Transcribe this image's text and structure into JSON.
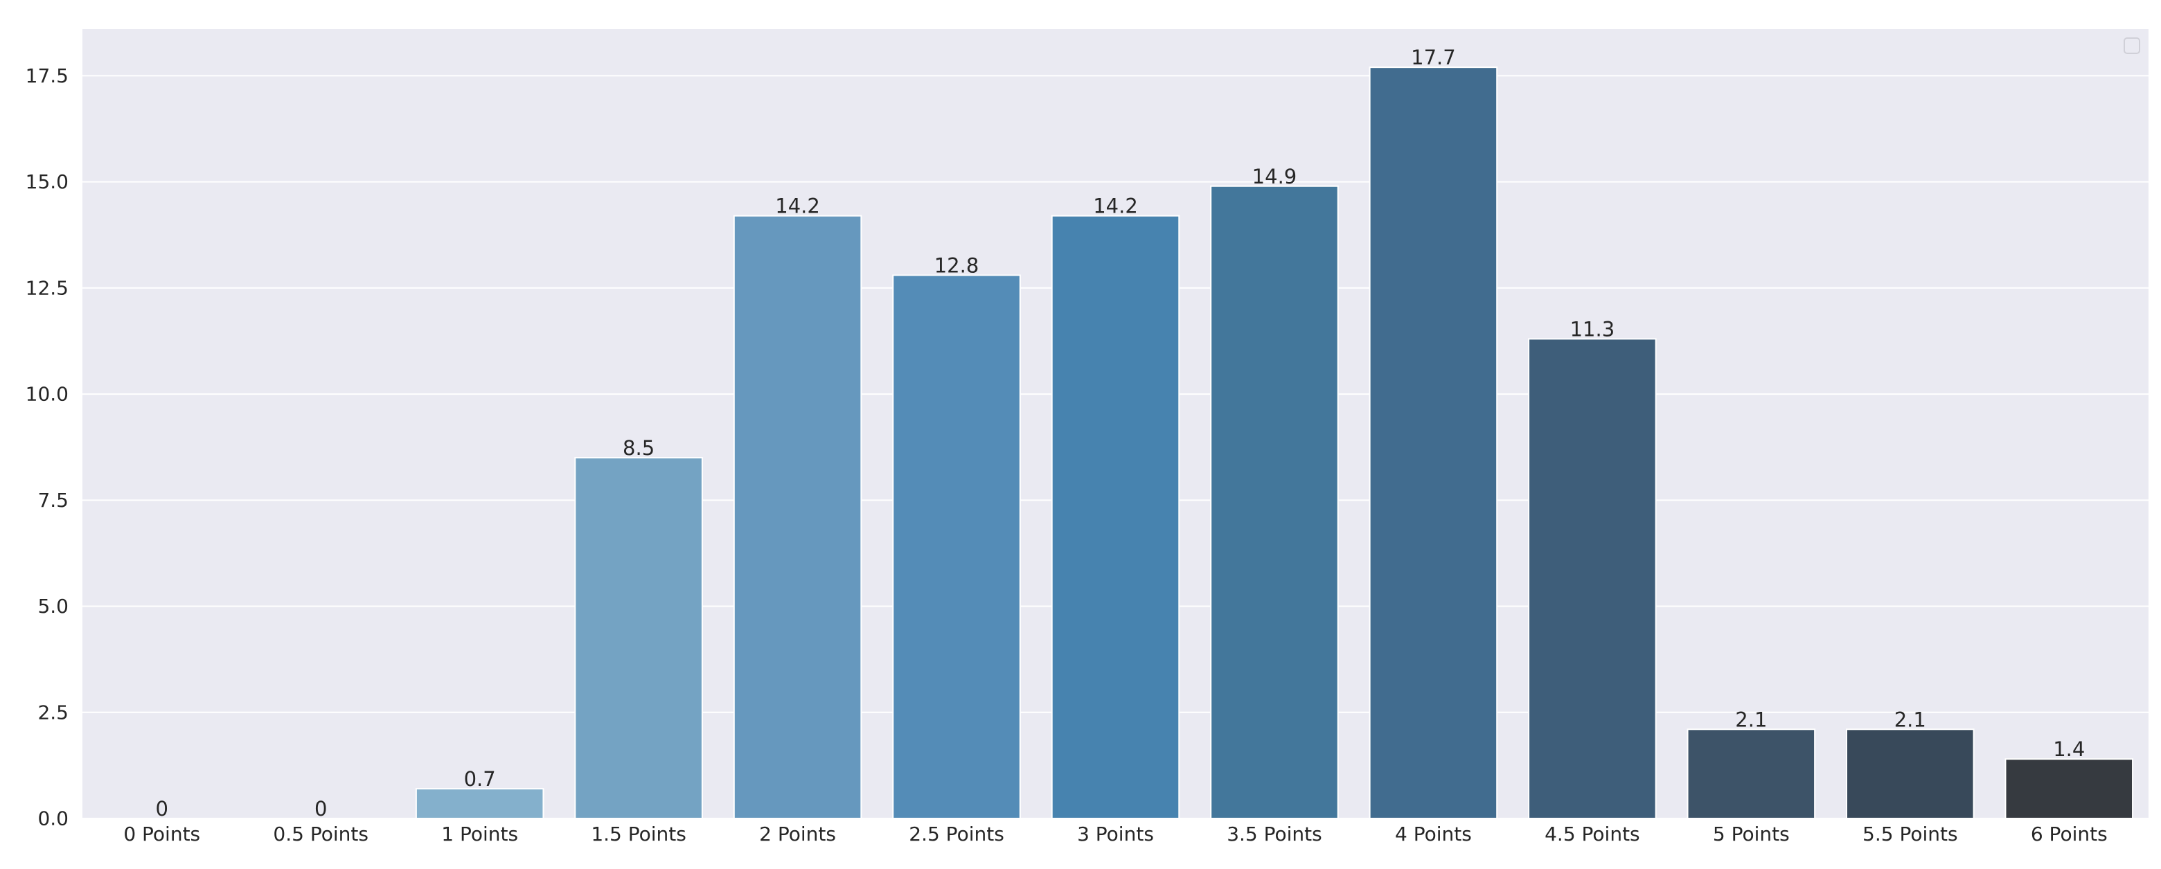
{
  "chart_data": {
    "type": "bar",
    "title": "",
    "xlabel": "",
    "ylabel": "",
    "categories": [
      "0 Points",
      "0.5 Points",
      "1 Points",
      "1.5 Points",
      "2 Points",
      "2.5 Points",
      "3 Points",
      "3.5 Points",
      "4 Points",
      "4.5 Points",
      "5 Points",
      "5.5 Points",
      "6 Points"
    ],
    "values": [
      0,
      0,
      0.7,
      8.5,
      14.2,
      12.8,
      14.2,
      14.9,
      17.7,
      11.3,
      2.1,
      2.1,
      1.4
    ],
    "value_labels": [
      "0",
      "0",
      "0.7",
      "8.5",
      "14.2",
      "12.8",
      "14.2",
      "14.9",
      "17.7",
      "11.3",
      "2.1",
      "2.1",
      "1.4"
    ],
    "ylim": [
      0,
      18.6
    ],
    "yticks": [
      0,
      2.5,
      5,
      7.5,
      10,
      12.5,
      15,
      17.5
    ],
    "ytick_labels": [
      "0.0",
      "2.5",
      "5.0",
      "7.5",
      "10.0",
      "12.5",
      "15.0",
      "17.5"
    ],
    "grid": true,
    "legend": "top-right, empty",
    "colors": [
      "#8fb6d0",
      "#8db4ce",
      "#84b0cc",
      "#74a3c3",
      "#6698be",
      "#548cb7",
      "#4783af",
      "#43779b",
      "#416c8f",
      "#3e5e7a",
      "#3d5368",
      "#38495a",
      "#363a40"
    ],
    "style": {
      "background": "#eaeaf2",
      "grid_color": "#ffffff",
      "text_color": "#262626"
    }
  }
}
